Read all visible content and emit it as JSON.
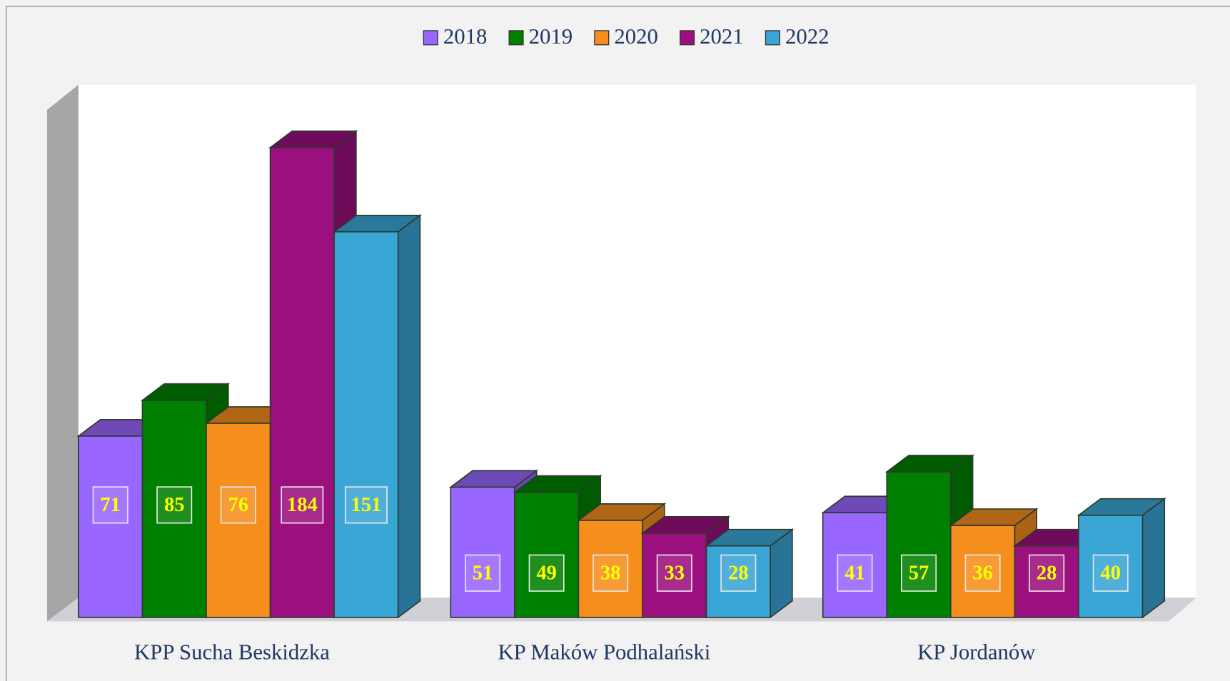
{
  "chart_data": {
    "type": "bar3d",
    "categories": [
      "KPP Sucha Beskidzka",
      "KP Maków Podhalański",
      "KP Jordanów"
    ],
    "series": [
      {
        "name": "2018",
        "color": "#9966ff",
        "values": [
          71,
          51,
          41
        ]
      },
      {
        "name": "2019",
        "color": "#008000",
        "values": [
          85,
          49,
          57
        ]
      },
      {
        "name": "2020",
        "color": "#f68e1e",
        "values": [
          76,
          38,
          36
        ]
      },
      {
        "name": "2021",
        "color": "#9b0f7f",
        "values": [
          184,
          33,
          28
        ]
      },
      {
        "name": "2022",
        "color": "#3aa6d6",
        "values": [
          151,
          28,
          40
        ]
      }
    ],
    "legend": "top"
  }
}
